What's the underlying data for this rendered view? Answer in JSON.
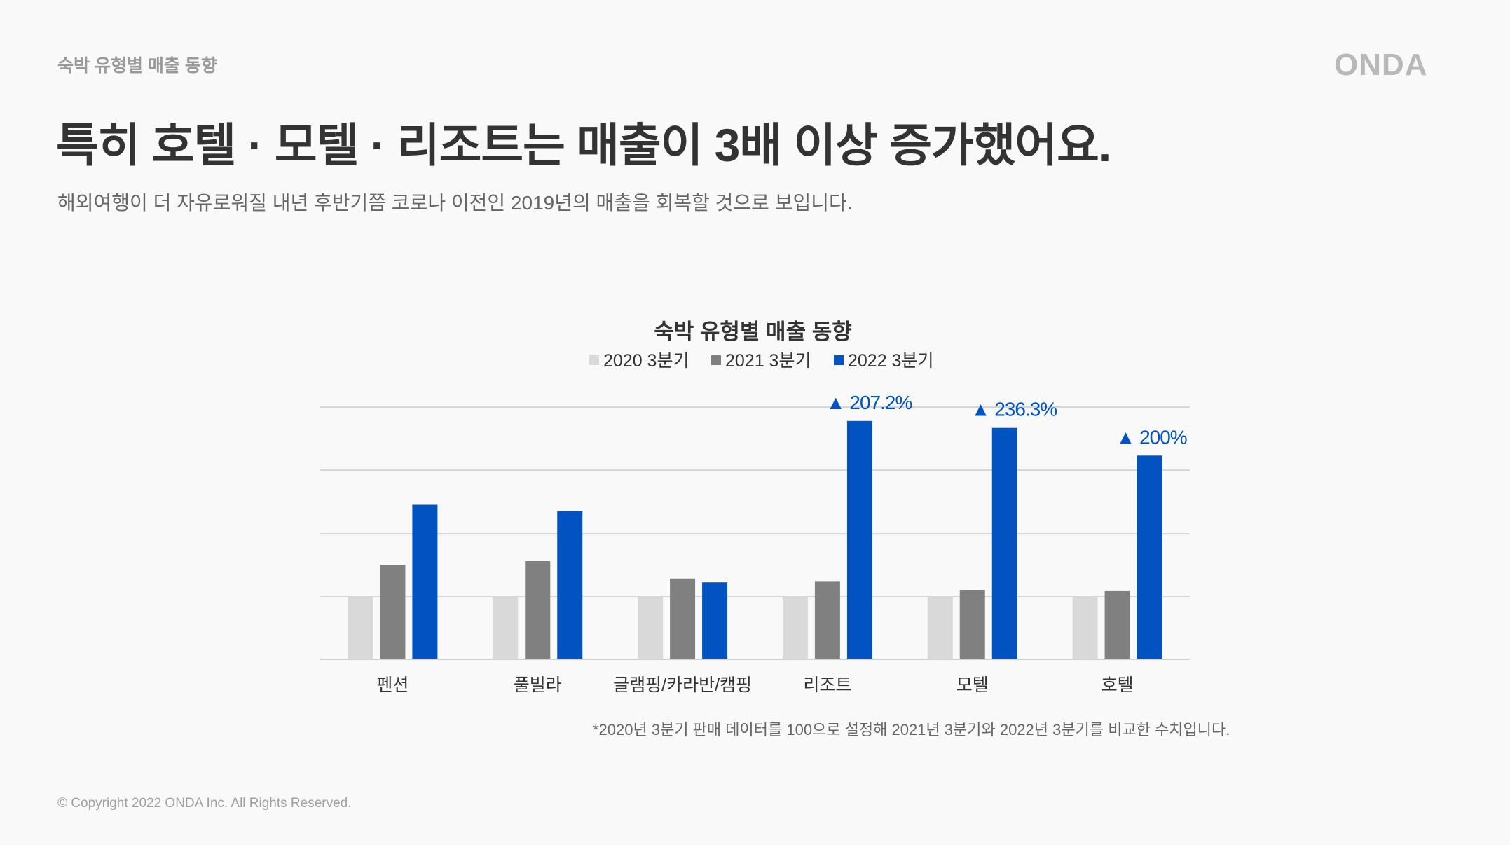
{
  "header": {
    "section_label": "숙박 유형별 매출 동향",
    "brand": "ONDA",
    "headline": "특히 호텔 · 모텔 · 리조트는 매출이 3배 이상 증가했어요.",
    "subline": "해외여행이 더 자유로워질 내년 후반기쯤 코로나 이전인 2019년의 매출을 회복할 것으로 보입니다."
  },
  "colors": {
    "series_2020": "#d9d9d9",
    "series_2021": "#808080",
    "series_2022": "#0053c0",
    "annotation": "#0053c0",
    "grid": "#d6d6d6"
  },
  "chart_data": {
    "type": "bar",
    "title": "숙박 유형별 매출 동향",
    "categories": [
      "펜션",
      "풀빌라",
      "글램핑/카라반/캠핑",
      "리조트",
      "모텔",
      "호텔"
    ],
    "series": [
      {
        "name": "2020 3분기",
        "values": [
          100,
          100,
          100,
          100,
          100,
          100
        ]
      },
      {
        "name": "2021 3분기",
        "values": [
          150,
          156,
          128,
          124,
          110,
          109
        ]
      },
      {
        "name": "2022 3분기",
        "values": [
          245,
          235,
          122,
          378,
          367,
          323
        ]
      }
    ],
    "ylim": [
      0,
      400
    ],
    "yticks": [
      0,
      100,
      200,
      300,
      400
    ],
    "grid": true,
    "legend": "top-center",
    "annotations": [
      "▲ 207.2%",
      "▲ 236.3%",
      "▲ 200%"
    ]
  },
  "footnote": "*2020년 3분기 판매 데이터를 100으로 설정해 2021년 3분기와 2022년 3분기를 비교한 수치입니다.",
  "copyright": "© Copyright 2022 ONDA Inc. All Rights Reserved."
}
